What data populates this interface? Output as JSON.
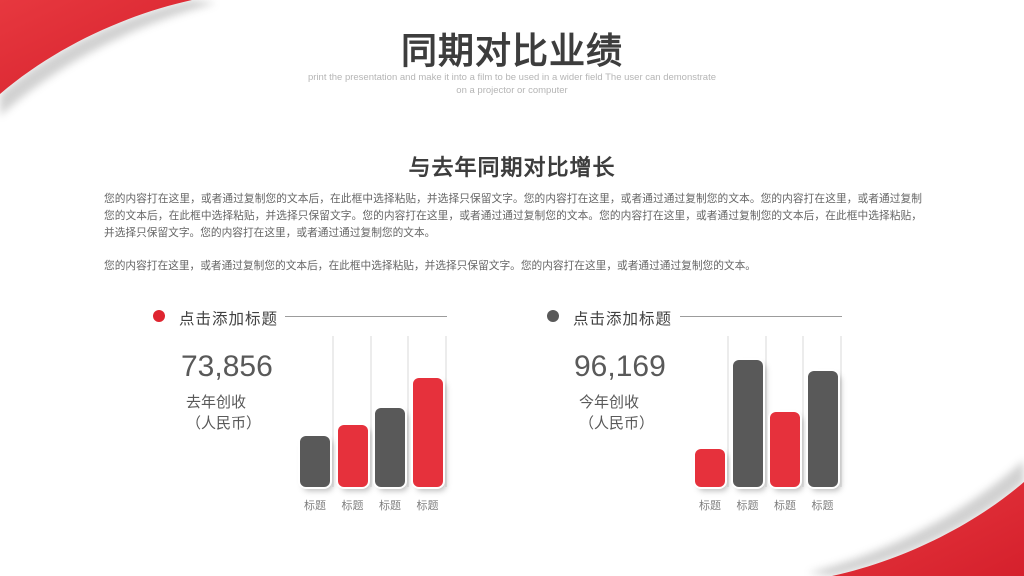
{
  "header": {
    "title": "同期对比业绩",
    "subtitle_lines": [
      "print the presentation and make it into a film to be used in a wider field The user can demonstrate",
      "on a projector or computer"
    ]
  },
  "section": {
    "heading": "与去年同期对比增长",
    "paragraph1": "您的内容打在这里，或者通过复制您的文本后，在此框中选择粘贴，并选择只保留文字。您的内容打在这里，或者通过通过复制您的文本。您的内容打在这里，或者通过复制您的文本后，在此框中选择粘贴，并选择只保留文字。您的内容打在这里，或者通过通过复制您的文本。您的内容打在这里，或者通过复制您的文本后，在此框中选择粘贴，并选择只保留文字。您的内容打在这里，或者通过通过复制您的文本。",
    "paragraph2": "您的内容打在这里，或者通过复制您的文本后，在此框中选择粘贴，并选择只保留文字。您的内容打在这里，或者通过通过复制您的文本。"
  },
  "colors": {
    "accent_red": "#df2530",
    "dark_gray": "#595959",
    "bar_red": "#e6313c",
    "track_gray": "#ececec"
  },
  "left_panel": {
    "bullet_color": "#df2530",
    "title": "点击添加标题",
    "value": "73,856",
    "label_line1": "去年创收",
    "label_line2": "（人民币）"
  },
  "right_panel": {
    "bullet_color": "#595959",
    "title": "点击添加标题",
    "value": "96,169",
    "label_line1": "今年创收",
    "label_line2": "（人民币）"
  },
  "chart_data": [
    {
      "type": "bar",
      "title": "点击添加标题",
      "annotation": "73,856 去年创收（人民币）",
      "categories": [
        "标题",
        "标题",
        "标题",
        "标题"
      ],
      "values": [
        34,
        41,
        52,
        72
      ],
      "bar_colors": [
        "#595959",
        "#e6313c",
        "#595959",
        "#e6313c"
      ],
      "ylim": [
        0,
        100
      ],
      "grid": false,
      "legend": "none"
    },
    {
      "type": "bar",
      "title": "点击添加标题",
      "annotation": "96,169 今年创收（人民币）",
      "categories": [
        "标题",
        "标题",
        "标题",
        "标题"
      ],
      "values": [
        25,
        84,
        50,
        77
      ],
      "bar_colors": [
        "#e6313c",
        "#595959",
        "#e6313c",
        "#595959"
      ],
      "ylim": [
        0,
        100
      ],
      "grid": false,
      "legend": "none"
    }
  ]
}
